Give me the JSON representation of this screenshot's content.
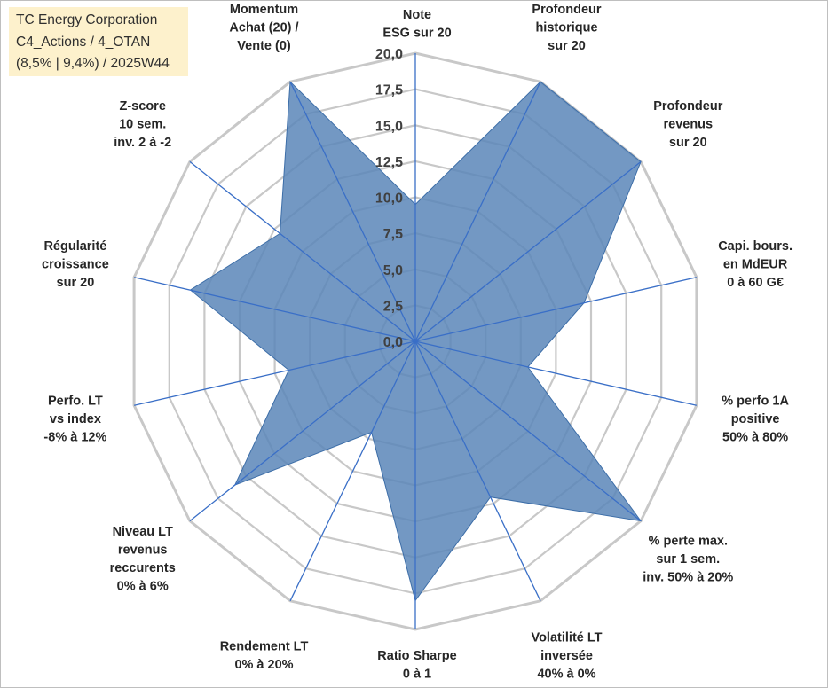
{
  "title": {
    "line1": "TC Energy Corporation",
    "line2": "C4_Actions / 4_OTAN",
    "line3": "(8,5% | 9,4%) / 2025W44"
  },
  "chart_data": {
    "type": "radar",
    "rmin": 0,
    "rmax": 20,
    "step": 2.5,
    "tick_labels": [
      "0,0",
      "2,5",
      "5,0",
      "7,5",
      "10,0",
      "12,5",
      "15,0",
      "17,5",
      "20,0"
    ],
    "grid_levels": 8,
    "axes": [
      {
        "label": [
          "Note",
          "ESG sur 20"
        ],
        "value": 9.5
      },
      {
        "label": [
          "Profondeur",
          "historique",
          "sur 20"
        ],
        "value": 20
      },
      {
        "label": [
          "Profondeur",
          "revenus",
          "sur 20"
        ],
        "value": 20
      },
      {
        "label": [
          "Capi. bours.",
          "en MdEUR",
          "0 à 60 G€"
        ],
        "value": 12
      },
      {
        "label": [
          "% perfo 1A",
          "positive",
          "50% à 80%"
        ],
        "value": 8
      },
      {
        "label": [
          "% perte max.",
          "sur 1 sem.",
          "inv. 50% à 20%"
        ],
        "value": 20
      },
      {
        "label": [
          "Volatilité LT",
          "inversée",
          "40% à 0%"
        ],
        "value": 12
      },
      {
        "label": [
          "Ratio Sharpe",
          "0 à 1"
        ],
        "value": 18
      },
      {
        "label": [
          "Rendement LT",
          "0% à 20%"
        ],
        "value": 7
      },
      {
        "label": [
          "Niveau LT",
          "revenus",
          "reccurents",
          "0% à 6%"
        ],
        "value": 16
      },
      {
        "label": [
          "Perfo. LT",
          "vs index",
          "-8% à 12%"
        ],
        "value": 9
      },
      {
        "label": [
          "Régularité",
          "croissance",
          "sur 20"
        ],
        "value": 16
      },
      {
        "label": [
          "Z-score",
          "10 sem.",
          "inv. 2 à -2"
        ],
        "value": 12
      },
      {
        "label": [
          "Momentum",
          "Achat (20) /",
          "Vente (0)"
        ],
        "value": 20
      }
    ],
    "series": [
      {
        "name": "TC Energy Corporation",
        "fill": "#5a86b8",
        "stroke": "#3d6ea8"
      }
    ],
    "grid_color": "#c8c8c8",
    "spoke_color": "#3a6fc7"
  }
}
